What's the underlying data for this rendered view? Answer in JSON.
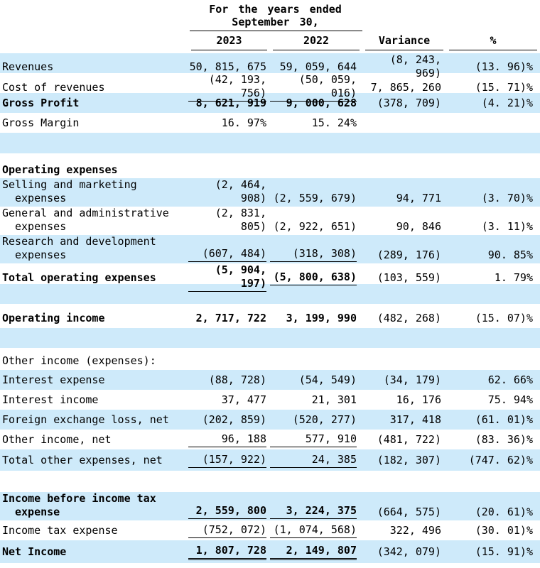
{
  "header": {
    "period_line1": "For the years ended",
    "period_line2": "September 30,",
    "columns": [
      "2023",
      "2022",
      "Variance",
      "%"
    ]
  },
  "colors": {
    "row_highlight": "#ceeafa",
    "text": "#000000",
    "rule": "#000000"
  },
  "table": {
    "rows": [
      {
        "type": "data",
        "label": "Revenues",
        "bg": "blue",
        "bold": false,
        "values": [
          "50, 815, 675",
          "59, 059, 644",
          "(8, 243, 969)",
          "(13. 96)%"
        ]
      },
      {
        "type": "data",
        "label": "Cost of revenues",
        "bg": "white",
        "bold": false,
        "underline": "single",
        "values": [
          "(42, 193, 756)",
          "(50, 059, 016)",
          "7, 865, 260",
          "(15. 71)%"
        ]
      },
      {
        "type": "data",
        "label": "Gross Profit",
        "bg": "blue",
        "bold": true,
        "values": [
          "8, 621, 919",
          "9, 000, 628",
          "(378, 709)",
          "(4. 21)%"
        ]
      },
      {
        "type": "data",
        "label": "Gross Margin",
        "bg": "white",
        "bold": false,
        "values": [
          "16. 97%",
          "15. 24%",
          "",
          ""
        ]
      },
      {
        "type": "spacer",
        "bg": "blue",
        "h": 29
      },
      {
        "type": "spacer",
        "bg": "white",
        "h": 11
      },
      {
        "type": "section",
        "label": "Operating expenses",
        "bg": "white",
        "bold": true,
        "h": 24
      },
      {
        "type": "data",
        "label": "Selling and marketing",
        "label2": "expenses",
        "bg": "blue",
        "bold": false,
        "values": [
          "(2, 464, 908)",
          "(2, 559, 679)",
          "94, 771",
          "(3. 70)%"
        ]
      },
      {
        "type": "data",
        "label": "General and administrative",
        "label2": "expenses",
        "bg": "white",
        "bold": false,
        "values": [
          "(2, 831, 805)",
          "(2, 922, 651)",
          "90, 846",
          "(3. 11)%"
        ]
      },
      {
        "type": "data",
        "label": "Research and development",
        "label2": "expenses",
        "bg": "blue",
        "bold": false,
        "underline": "single",
        "values": [
          "(607, 484)",
          "(318, 308)",
          "(289, 176)",
          "90. 85%"
        ]
      },
      {
        "type": "data",
        "label": "Total operating expenses",
        "bg": "white",
        "bold": true,
        "underline": "single",
        "h": 29,
        "values": [
          "(5, 904, 197)",
          "(5, 800, 638)",
          "(103, 559)",
          "1. 79%"
        ]
      },
      {
        "type": "spacer",
        "bg": "blue",
        "h": 28
      },
      {
        "type": "spacer",
        "bg": "white",
        "h": 6
      },
      {
        "type": "data",
        "label": "Operating income",
        "bg": "white",
        "bold": true,
        "values": [
          "2, 717, 722",
          "3, 199, 990",
          "(482, 268)",
          "(15. 07)%"
        ]
      },
      {
        "type": "spacer",
        "bg": "blue",
        "h": 28
      },
      {
        "type": "spacer",
        "bg": "white",
        "h": 6
      },
      {
        "type": "section",
        "label": "Other income (expenses):",
        "bg": "white",
        "bold": false,
        "h": 25
      },
      {
        "type": "data",
        "label": "Interest expense",
        "bg": "blue",
        "bold": false,
        "values": [
          "(88, 728)",
          "(54, 549)",
          "(34, 179)",
          "62. 66%"
        ]
      },
      {
        "type": "data",
        "label": "Interest income",
        "bg": "white",
        "bold": false,
        "values": [
          "37, 477",
          "21, 301",
          "16, 176",
          "75. 94%"
        ]
      },
      {
        "type": "data",
        "label": "Foreign exchange loss, net",
        "bg": "blue",
        "bold": false,
        "values": [
          "(202, 859)",
          "(520, 277)",
          "317, 418",
          "(61. 01)%"
        ]
      },
      {
        "type": "data",
        "label": "Other income, net",
        "bg": "white",
        "bold": false,
        "underline": "single",
        "values": [
          "96, 188",
          "577, 910",
          "(481, 722)",
          "(83. 36)%"
        ]
      },
      {
        "type": "data",
        "label": "Total other expenses, net",
        "bg": "blue",
        "bold": false,
        "underline": "single",
        "h": 30,
        "values": [
          "(157, 922)",
          "24, 385",
          "(182, 307)",
          "(747. 62)%"
        ]
      },
      {
        "type": "spacer",
        "bg": "white",
        "h": 30
      },
      {
        "type": "data",
        "label": "Income before income tax",
        "label2": "expense",
        "bg": "blue",
        "bold": true,
        "underline": "single",
        "values": [
          "2, 559, 800",
          "3, 224, 375",
          "(664, 575)",
          "(20. 61)%"
        ]
      },
      {
        "type": "data",
        "label": "Income tax expense",
        "bg": "white",
        "bold": false,
        "underline": "single",
        "values": [
          "(752, 072)",
          "(1, 074, 568)",
          "322, 496",
          "(30. 01)%"
        ]
      },
      {
        "type": "data",
        "label": "Net Income",
        "bg": "blue",
        "bold": true,
        "underline": "double",
        "h": 32,
        "values": [
          "1, 807, 728",
          "2, 149, 807",
          "(342, 079)",
          "(15. 91)%"
        ]
      },
      {
        "type": "spacer",
        "bg": "white",
        "h": 7
      }
    ]
  }
}
